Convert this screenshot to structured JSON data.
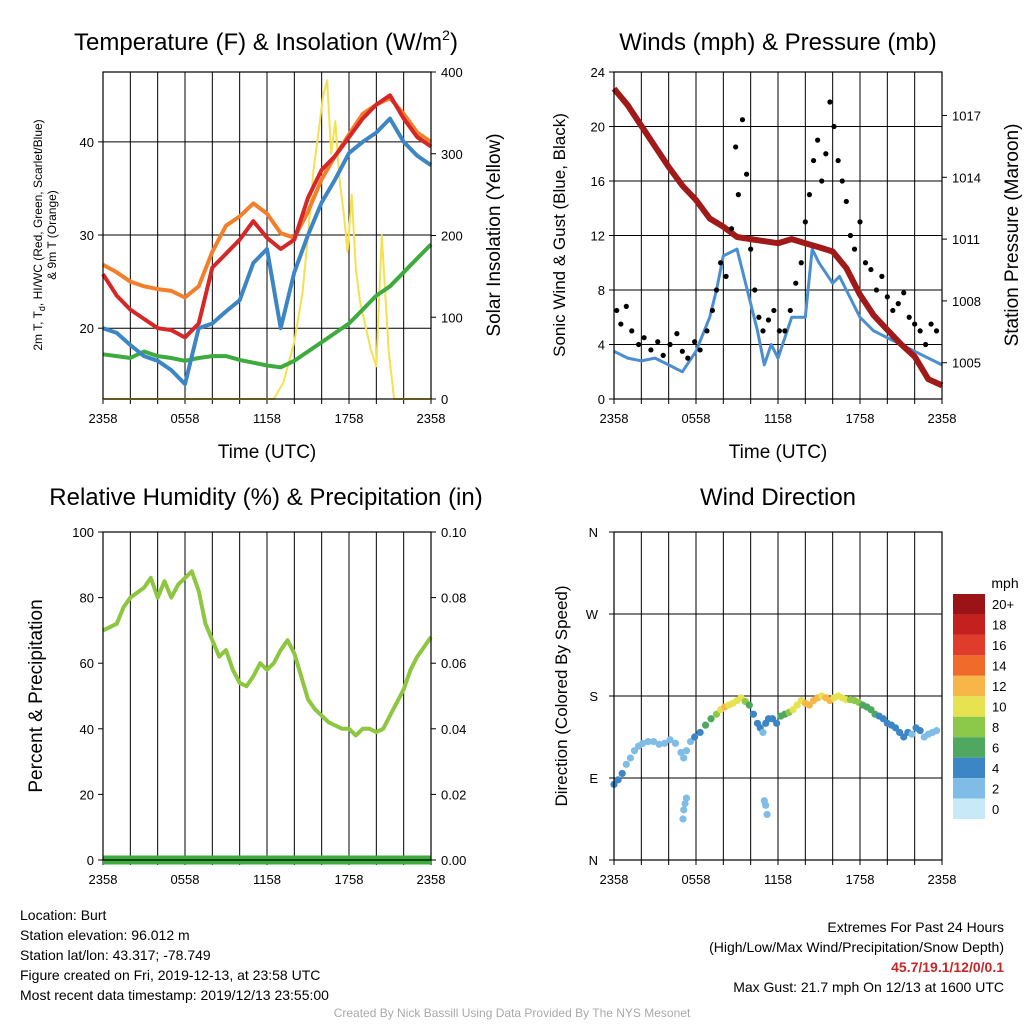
{
  "panels": {
    "temperature": {
      "title_main": "Temperature (F) & Insolation (W/m",
      "title_sup": "2",
      "title_end": ")",
      "ylabel_line1_a": "2m T, T",
      "ylabel_sub": "d",
      "ylabel_line1_b": ", HI/WC (Red, Green, Scarlet/Blue)",
      "ylabel_line2": "& 9m T (Orange)",
      "y2label": "Solar Insolation (Yellow)",
      "xlabel": "Time (UTC)"
    },
    "winds": {
      "title": "Winds (mph) & Pressure (mb)",
      "ylabel": "Sonic Wind & Gust (Blue, Black)",
      "y2label": "Station Pressure (Maroon)",
      "xlabel": "Time (UTC)"
    },
    "humidity": {
      "title": "Relative Humidity (%) & Precipitation (in)",
      "ylabel": "Percent & Precipitation"
    },
    "direction": {
      "title": "Wind Direction",
      "ylabel": "Direction (Colored By Speed)",
      "legend_title": "mph"
    }
  },
  "chart_data": [
    {
      "name": "temperature",
      "type": "line",
      "x_ticks": [
        "2358",
        "0558",
        "1158",
        "1758",
        "2358"
      ],
      "x_range_hours": [
        0,
        24
      ],
      "y_range": [
        12.4,
        47.5
      ],
      "y_ticks": [
        20,
        30,
        40
      ],
      "y2_range": [
        0,
        400
      ],
      "y2_ticks": [
        0,
        100,
        200,
        300,
        400
      ],
      "series": [
        {
          "name": "9m T",
          "axis": "left",
          "color": "#f27f2b",
          "x": [
            0,
            1,
            2,
            3,
            4,
            5,
            6,
            7,
            8,
            9,
            10,
            11,
            12,
            13,
            14,
            15,
            16,
            17,
            18,
            19,
            20,
            21,
            22,
            23,
            24
          ],
          "values": [
            26.8,
            26,
            25,
            24.5,
            24.2,
            24,
            23.3,
            24.5,
            28.2,
            31,
            32,
            33.4,
            32.3,
            30.2,
            29.7,
            32.5,
            36,
            38.5,
            40.8,
            43,
            44,
            44.7,
            43,
            41,
            40
          ]
        },
        {
          "name": "2m T",
          "axis": "left",
          "color": "#d62728",
          "x": [
            0,
            1,
            2,
            3,
            4,
            5,
            6,
            7,
            8,
            9,
            10,
            11,
            12,
            13,
            14,
            15,
            16,
            17,
            18,
            19,
            20,
            21,
            22,
            23,
            24
          ],
          "values": [
            25.8,
            23.5,
            22,
            21,
            20,
            19.8,
            19,
            20.5,
            26.5,
            28,
            29.5,
            31.5,
            29.7,
            28.5,
            29.5,
            34,
            37,
            38.5,
            40.5,
            42.5,
            44,
            45,
            42.5,
            40.5,
            39.5
          ]
        },
        {
          "name": "HI/WC",
          "axis": "left",
          "color": "#3d86c6",
          "x": [
            0,
            1,
            2,
            3,
            4,
            5,
            6,
            7,
            8,
            9,
            10,
            11,
            12,
            13,
            14,
            15,
            16,
            17,
            18,
            19,
            20,
            21,
            22,
            23,
            24
          ],
          "values": [
            20,
            19.5,
            18.2,
            17,
            16.5,
            15.5,
            14,
            20,
            20.5,
            21.8,
            23,
            27,
            28.5,
            20,
            26,
            30,
            33.5,
            36,
            38.8,
            40,
            41,
            42.5,
            40,
            38.5,
            37.5
          ]
        },
        {
          "name": "Td",
          "axis": "left",
          "color": "#3dab3d",
          "x": [
            0,
            1,
            2,
            3,
            4,
            5,
            6,
            7,
            8,
            9,
            10,
            11,
            12,
            13,
            14,
            15,
            16,
            17,
            18,
            19,
            20,
            21,
            22,
            23,
            24
          ],
          "values": [
            17.2,
            17,
            16.8,
            17.5,
            17,
            16.8,
            16.5,
            16.8,
            17,
            17,
            16.6,
            16.3,
            16,
            15.8,
            16.5,
            17.5,
            18.5,
            19.5,
            20.5,
            22,
            23.5,
            24.5,
            26,
            27.5,
            29
          ]
        },
        {
          "name": "Solar Insolation",
          "axis": "right",
          "color": "#f5e050",
          "x": [
            0,
            12.5,
            13.2,
            14,
            14.6,
            15,
            15.4,
            15.8,
            16.1,
            16.4,
            16.7,
            17,
            17.3,
            17.6,
            17.9,
            18.2,
            18.5,
            18.8,
            19.2,
            19.6,
            20,
            20.4,
            20.9,
            21.3,
            24
          ],
          "values": [
            0,
            0,
            20,
            70,
            130,
            200,
            280,
            330,
            370,
            390,
            300,
            340,
            270,
            230,
            180,
            250,
            160,
            120,
            90,
            60,
            40,
            200,
            60,
            0,
            0
          ]
        }
      ]
    },
    {
      "name": "winds",
      "type": "line",
      "x_ticks": [
        "2358",
        "0558",
        "1158",
        "1758",
        "2358"
      ],
      "x_range_hours": [
        0,
        24
      ],
      "y_range": [
        0,
        24
      ],
      "y_ticks": [
        0,
        4,
        8,
        12,
        16,
        20,
        24
      ],
      "y2_range": [
        1003.24,
        1019.11
      ],
      "y2_ticks": [
        1005,
        1008,
        1011,
        1014,
        1017
      ],
      "series": [
        {
          "name": "Sonic Wind",
          "axis": "left",
          "color": "#4b8fd0",
          "x": [
            0,
            1,
            2,
            3,
            4,
            5,
            6,
            7,
            7.5,
            8,
            9,
            10,
            10.5,
            11,
            11.5,
            12,
            13,
            14,
            14.5,
            15,
            16,
            16.5,
            17,
            18,
            19,
            20,
            21,
            22,
            23,
            24
          ],
          "values": [
            3.5,
            3,
            2.8,
            3,
            2.5,
            2,
            3.5,
            6,
            8,
            10.5,
            11,
            7,
            5,
            2.5,
            4,
            3,
            6,
            6,
            11,
            10,
            8.5,
            9,
            8,
            6,
            5,
            4.5,
            4,
            3.5,
            3,
            2.5
          ]
        },
        {
          "name": "Gust",
          "axis": "left",
          "color": "#000000",
          "mode": "markers",
          "x": [
            0.2,
            0.5,
            0.9,
            1.3,
            1.8,
            2.2,
            2.7,
            3.2,
            3.6,
            4.1,
            4.6,
            5,
            5.4,
            5.9,
            6.3,
            6.8,
            7.2,
            7.5,
            7.8,
            8.2,
            8.6,
            8.9,
            9.1,
            9.4,
            9.7,
            10,
            10.3,
            10.6,
            10.9,
            11.3,
            11.7,
            12.1,
            12.5,
            12.9,
            13.3,
            13.7,
            14,
            14.3,
            14.6,
            14.9,
            15.2,
            15.5,
            15.8,
            16.1,
            16.4,
            16.7,
            17,
            17.3,
            17.6,
            18,
            18.4,
            18.8,
            19.2,
            19.6,
            20,
            20.4,
            20.8,
            21.2,
            21.6,
            22,
            22.4,
            22.8,
            23.2,
            23.6
          ],
          "values": [
            6.5,
            5.5,
            6.8,
            5,
            4,
            4.5,
            3.6,
            4.2,
            3.2,
            4,
            4.8,
            3.5,
            3,
            4.2,
            3.6,
            5,
            6.5,
            8,
            10,
            9,
            12.5,
            18.5,
            15,
            20.5,
            16.5,
            11,
            8,
            6,
            5,
            5.8,
            6.5,
            5,
            5,
            6.5,
            8.5,
            10,
            13,
            15,
            17.5,
            19,
            16,
            18,
            21.8,
            20,
            17.5,
            16,
            14.5,
            12,
            11,
            13,
            10,
            9.5,
            8,
            9,
            7.5,
            6.5,
            7,
            7.8,
            6,
            5.5,
            5,
            4,
            5.5,
            5
          ]
        },
        {
          "name": "Station Pressure",
          "axis": "right",
          "color": "#a11a1a",
          "x": [
            0,
            1,
            2,
            3,
            4,
            5,
            6,
            7,
            8,
            9,
            10,
            11,
            12,
            13,
            14,
            15,
            16,
            17,
            18,
            19,
            20,
            21,
            22,
            23,
            24
          ],
          "values": [
            1018.3,
            1017.5,
            1016.5,
            1015.5,
            1014.5,
            1013.6,
            1012.9,
            1012,
            1011.6,
            1011.1,
            1011,
            1010.9,
            1010.8,
            1011,
            1010.8,
            1010.6,
            1010.4,
            1009.6,
            1008.3,
            1007.3,
            1006.6,
            1005.9,
            1005.3,
            1004.2,
            1003.9
          ]
        }
      ]
    },
    {
      "name": "humidity",
      "type": "line",
      "x_ticks": [
        "2358",
        "0558",
        "1158",
        "1758",
        "2358"
      ],
      "x_range_hours": [
        0,
        24
      ],
      "y_range": [
        0,
        100
      ],
      "y_ticks": [
        0,
        20,
        40,
        60,
        80,
        100
      ],
      "y2_range": [
        0,
        0.1
      ],
      "y2_ticks": [
        "0.00",
        "0.02",
        "0.04",
        "0.06",
        "0.08",
        "0.10"
      ],
      "series": [
        {
          "name": "Relative Humidity",
          "axis": "left",
          "color": "#8dc63f",
          "x": [
            0,
            1,
            1.5,
            2,
            3,
            3.5,
            4,
            4.5,
            5,
            5.5,
            6,
            6.5,
            7,
            7.5,
            8,
            8.5,
            9,
            9.5,
            10,
            10.5,
            11,
            11.5,
            12,
            12.5,
            13,
            13.5,
            14,
            14.5,
            15,
            15.5,
            16,
            16.5,
            17,
            17.5,
            18,
            18.5,
            19,
            19.5,
            20,
            20.5,
            21,
            21.5,
            22,
            22.5,
            23,
            23.5,
            24
          ],
          "values": [
            70,
            72,
            77,
            80,
            83,
            86,
            80,
            85,
            80,
            84,
            86,
            88,
            82,
            72,
            67,
            62,
            64,
            58,
            54,
            53,
            56,
            60,
            58,
            60,
            64,
            67,
            63,
            56,
            49,
            46,
            44,
            42,
            41,
            40,
            40,
            38,
            40,
            40,
            39,
            40,
            44,
            48,
            52,
            58,
            62,
            65,
            68
          ]
        },
        {
          "name": "Precipitation",
          "axis": "right",
          "color": "#3dab3d",
          "x": [
            0,
            24
          ],
          "values": [
            0,
            0
          ]
        }
      ]
    },
    {
      "name": "direction",
      "type": "scatter",
      "x_ticks": [
        "2358",
        "0558",
        "1158",
        "1758",
        "2358"
      ],
      "x_range_hours": [
        0,
        24
      ],
      "y_ticks": [
        "N",
        "E",
        "S",
        "W",
        "N"
      ],
      "legend_levels": [
        "0",
        "2",
        "4",
        "6",
        "8",
        "10",
        "12",
        "14",
        "16",
        "18",
        "20+"
      ],
      "legend_colors": [
        "#c8e9f8",
        "#7fbde6",
        "#3d86c6",
        "#4ea860",
        "#8cc94a",
        "#e6e250",
        "#f7b748",
        "#f06b2b",
        "#e03c2b",
        "#c4201f",
        "#9b1316"
      ],
      "points": {
        "x": [
          0,
          0.3,
          0.6,
          0.9,
          1.2,
          1.5,
          1.8,
          2.1,
          2.5,
          2.9,
          3.3,
          3.7,
          4.1,
          4.5,
          4.9,
          5.1,
          5.3,
          5.6,
          5.9,
          6.3,
          6.7,
          7.1,
          7.5,
          7.8,
          8.1,
          8.4,
          8.7,
          9,
          9.3,
          9.6,
          9.9,
          10.2,
          10.5,
          10.7,
          10.9,
          11.1,
          11.3,
          11.6,
          11.9,
          12.2,
          12.5,
          12.8,
          13.1,
          13.4,
          13.7,
          14,
          14.3,
          14.6,
          14.9,
          15.2,
          15.5,
          15.8,
          16.1,
          16.4,
          16.7,
          17,
          17.3,
          17.6,
          17.9,
          18.2,
          18.5,
          18.8,
          19.1,
          19.4,
          19.7,
          20,
          20.3,
          20.6,
          20.9,
          21.2,
          21.5,
          21.8,
          22.1,
          22.4,
          22.7,
          23,
          23.3,
          23.6,
          5.1,
          5.2,
          5.3,
          5.05,
          11.1,
          11.0,
          11.2
        ],
        "y": [
          83,
          88,
          95,
          105,
          112,
          120,
          125,
          128,
          130,
          130,
          127,
          128,
          132,
          128,
          118,
          112,
          120,
          130,
          135,
          140,
          148,
          155,
          160,
          165,
          168,
          170,
          172,
          175,
          178,
          174,
          170,
          160,
          150,
          145,
          140,
          150,
          155,
          155,
          150,
          158,
          160,
          162,
          165,
          170,
          175,
          172,
          170,
          175,
          178,
          180,
          178,
          175,
          178,
          180,
          178,
          176,
          176,
          175,
          173,
          170,
          168,
          165,
          160,
          158,
          155,
          150,
          148,
          145,
          140,
          135,
          140,
          138,
          145,
          142,
          135,
          138,
          140,
          142,
          55,
          62,
          68,
          45,
          60,
          65,
          50
        ],
        "speed": [
          3,
          3,
          3,
          2,
          2,
          2,
          2,
          2,
          2,
          2,
          2,
          2,
          2,
          2,
          2,
          1,
          2,
          2,
          3,
          4,
          5,
          6,
          7,
          9,
          11,
          10,
          9,
          9,
          9,
          8,
          6,
          4,
          3,
          3,
          2,
          3,
          3,
          3,
          4,
          5,
          6,
          8,
          9,
          10,
          10,
          11,
          12,
          11,
          11,
          10,
          11,
          12,
          10,
          9,
          9,
          10,
          8,
          8,
          7,
          6,
          6,
          5,
          5,
          4,
          4,
          4,
          4,
          3,
          3,
          3,
          3,
          2,
          3,
          3,
          2,
          2,
          2,
          2,
          1,
          1,
          1,
          2,
          1,
          1,
          2
        ]
      }
    }
  ],
  "footer": {
    "location": "Location: Burt",
    "elevation": "Station elevation: 96.012 m",
    "latlon": "Station lat/lon: 43.317; -78.749",
    "created": "Figure created on Fri, 2019-12-13, at 23:58 UTC",
    "recent": "Most recent data timestamp: 2019/12/13 23:55:00",
    "extremes_title": "Extremes For Past 24 Hours",
    "extremes_sub": "(High/Low/Max Wind/Precipitation/Snow Depth)",
    "extremes_values": "45.7/19.1/12/0/0.1",
    "max_gust": "Max Gust: 21.7 mph On 12/13 at 1600 UTC",
    "credit": "Created By Nick Bassill Using Data Provided By The NYS Mesonet"
  }
}
